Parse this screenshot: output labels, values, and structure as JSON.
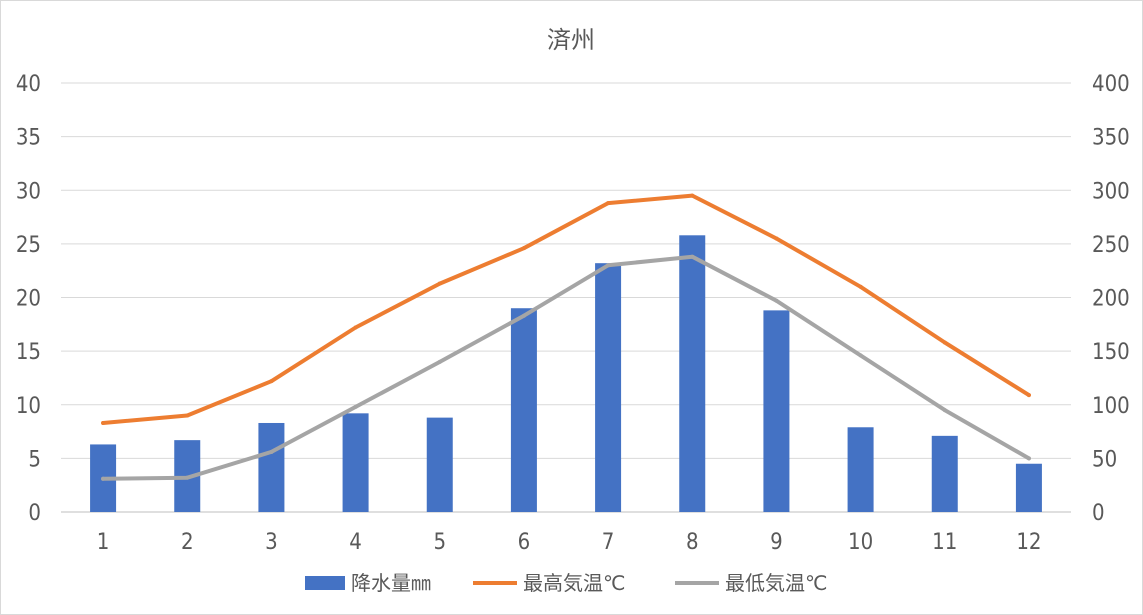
{
  "chart_data": {
    "type": "bar+line",
    "title": "済州",
    "categories": [
      "1",
      "2",
      "3",
      "4",
      "5",
      "6",
      "7",
      "8",
      "9",
      "10",
      "11",
      "12"
    ],
    "left_axis": {
      "ylim": [
        0,
        40
      ],
      "ticks": [
        "0",
        "5",
        "10",
        "15",
        "20",
        "25",
        "30",
        "35",
        "40"
      ]
    },
    "right_axis": {
      "ylim": [
        0,
        400
      ],
      "ticks": [
        "0",
        "50",
        "100",
        "150",
        "200",
        "250",
        "300",
        "350",
        "400"
      ]
    },
    "grid": true,
    "legend_position": "bottom",
    "series": [
      {
        "name": "降水量㎜",
        "kind": "bar",
        "axis": "left",
        "color": "#4472C4",
        "values": [
          6.3,
          6.7,
          8.3,
          9.2,
          8.8,
          19.0,
          23.2,
          25.8,
          18.8,
          7.9,
          7.1,
          4.5
        ]
      },
      {
        "name": "最高気温℃",
        "kind": "line",
        "axis": "left",
        "color": "#ED7D31",
        "values": [
          8.3,
          9.0,
          12.2,
          17.2,
          21.3,
          24.6,
          28.8,
          29.5,
          25.5,
          21.0,
          15.8,
          10.9
        ]
      },
      {
        "name": "最低気温℃",
        "kind": "line",
        "axis": "left",
        "color": "#A5A5A5",
        "values": [
          3.1,
          3.2,
          5.6,
          9.8,
          14.0,
          18.3,
          23.0,
          23.8,
          19.7,
          14.6,
          9.5,
          5.0
        ]
      }
    ]
  }
}
